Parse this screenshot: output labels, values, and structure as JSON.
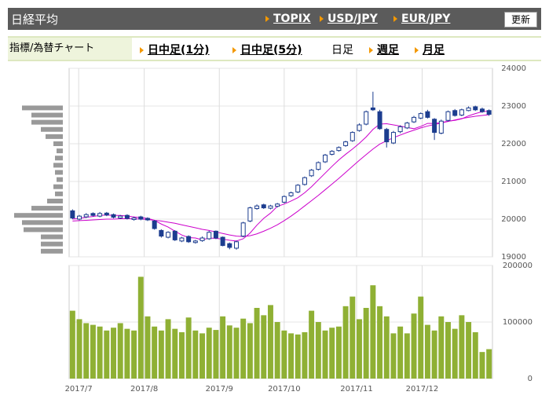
{
  "header": {
    "title": "日経平均",
    "links": [
      "TOPIX",
      "USD/JPY",
      "EUR/JPY"
    ],
    "button": "更新"
  },
  "nav": {
    "label": "指標/為替チャート",
    "tabs": [
      "日中足(1分)",
      "日中足(5分)",
      "日足",
      "週足",
      "月足"
    ]
  },
  "chart_data": {
    "type": "candlestick",
    "color": "#1c3d8f",
    "volume_color": "#8fb034",
    "ma_color": "#cc00cc",
    "xlim": [
      -0.5,
      61.5
    ],
    "xticks": [
      {
        "value": 0.9,
        "label": "2017/7"
      },
      {
        "value": 10.5,
        "label": "2017/8"
      },
      {
        "value": 21.5,
        "label": "2017/9"
      },
      {
        "value": 31,
        "label": "2017/10"
      },
      {
        "value": 41.6,
        "label": "2017/11"
      },
      {
        "value": 51.2,
        "label": "2017/12"
      }
    ],
    "ylim": [
      19000,
      24000
    ],
    "yticks": [
      19000,
      20000,
      21000,
      22000,
      23000,
      24000
    ],
    "y2lim": [
      0,
      200000
    ],
    "y2ticks": [
      0,
      100000,
      200000
    ],
    "open": [
      20220,
      20000,
      20060,
      20150,
      20080,
      20160,
      20120,
      20030,
      20100,
      19990,
      20060,
      20020,
      19950,
      19700,
      19520,
      19680,
      19420,
      19540,
      19380,
      19430,
      19480,
      19680,
      19520,
      19350,
      19230,
      19550,
      19950,
      20280,
      20380,
      20290,
      20340,
      20450,
      20620,
      20720,
      20920,
      21150,
      21320,
      21520,
      21720,
      21820,
      21950,
      22080,
      22350,
      22520,
      22950,
      22850,
      22380,
      22020,
      22320,
      22420,
      22580,
      22680,
      22850,
      22650,
      22280,
      22620,
      22880,
      22760,
      22880,
      22980,
      22920,
      22880
    ],
    "high": [
      20260,
      20110,
      20160,
      20180,
      20190,
      20190,
      20150,
      20110,
      20130,
      20060,
      20090,
      20050,
      19980,
      19730,
      19680,
      19710,
      19530,
      19570,
      19450,
      19540,
      19690,
      19700,
      19540,
      19380,
      19430,
      19930,
      20330,
      20390,
      20410,
      20380,
      20430,
      20630,
      20730,
      20930,
      21130,
      21330,
      21530,
      21730,
      21830,
      21930,
      22080,
      22330,
      22540,
      22880,
      23380,
      22900,
      22420,
      22340,
      22490,
      22580,
      22740,
      22830,
      22900,
      22680,
      22640,
      22880,
      22920,
      22930,
      22990,
      23010,
      22960,
      22910
    ],
    "low": [
      20000,
      19970,
      20030,
      20070,
      20050,
      20080,
      20020,
      20000,
      19990,
      19960,
      19970,
      19950,
      19720,
      19510,
      19490,
      19420,
      19390,
      19370,
      19350,
      19400,
      19450,
      19470,
      19280,
      19200,
      19190,
      19520,
      19920,
      20250,
      20270,
      20260,
      20310,
      20420,
      20590,
      20690,
      20890,
      21120,
      21290,
      21490,
      21690,
      21790,
      21920,
      22050,
      22320,
      22490,
      22870,
      22370,
      21900,
      21990,
      22280,
      22390,
      22550,
      22650,
      22670,
      22100,
      22250,
      22590,
      22720,
      22730,
      22860,
      22870,
      22820,
      22740
    ],
    "close": [
      20030,
      20080,
      20120,
      20100,
      20150,
      20110,
      20050,
      20080,
      20020,
      20030,
      20000,
      19980,
      19750,
      19550,
      19650,
      19450,
      19500,
      19400,
      19420,
      19500,
      19650,
      19500,
      19300,
      19250,
      19400,
      19900,
      20300,
      20350,
      20300,
      20350,
      20400,
      20600,
      20700,
      20900,
      21100,
      21300,
      21500,
      21700,
      21800,
      21900,
      22050,
      22300,
      22500,
      22850,
      22900,
      22400,
      22050,
      22300,
      22450,
      22550,
      22700,
      22800,
      22700,
      22300,
      22600,
      22850,
      22750,
      22900,
      22950,
      22900,
      22850,
      22780
    ],
    "volume": [
      120000,
      105000,
      98000,
      95000,
      92000,
      85000,
      90000,
      98000,
      88000,
      85000,
      180000,
      110000,
      92000,
      85000,
      105000,
      88000,
      82000,
      108000,
      85000,
      80000,
      90000,
      86000,
      110000,
      94000,
      90000,
      106000,
      98000,
      125000,
      112000,
      130000,
      100000,
      85000,
      80000,
      78000,
      82000,
      120000,
      100000,
      85000,
      90000,
      92000,
      128000,
      145000,
      105000,
      125000,
      165000,
      128000,
      110000,
      80000,
      92000,
      80000,
      115000,
      145000,
      95000,
      85000,
      110000,
      100000,
      88000,
      112000,
      100000,
      82000,
      47000,
      52000
    ],
    "ma": [
      [
        20000,
        20020,
        20050,
        20070,
        20100,
        20110,
        20100,
        20100,
        20080,
        20060,
        20040,
        20020,
        19970,
        19870,
        19790,
        19680,
        19580,
        19510,
        19500,
        19450,
        19500,
        19490,
        19470,
        19440,
        19420,
        19480,
        19630,
        19840,
        20020,
        20160,
        20340,
        20400,
        20480,
        20570,
        20700,
        20860,
        21040,
        21220,
        21400,
        21570,
        21720,
        21860,
        22010,
        22180,
        22380,
        22520,
        22530,
        22500,
        22470,
        22430,
        22400,
        22460,
        22540,
        22540,
        22560,
        22600,
        22620,
        22660,
        22740,
        22800,
        22850,
        22870
      ],
      [
        19950,
        19960,
        19970,
        19980,
        19990,
        20000,
        20000,
        20010,
        20010,
        20010,
        20000,
        19990,
        19970,
        19950,
        19920,
        19890,
        19850,
        19810,
        19770,
        19730,
        19700,
        19660,
        19620,
        19580,
        19550,
        19540,
        19560,
        19610,
        19680,
        19760,
        19850,
        19960,
        20080,
        20210,
        20350,
        20490,
        20630,
        20780,
        20930,
        21080,
        21240,
        21400,
        21560,
        21710,
        21860,
        21990,
        22080,
        22160,
        22230,
        22300,
        22360,
        22420,
        22470,
        22510,
        22550,
        22590,
        22630,
        22670,
        22700,
        22730,
        22750,
        22770
      ]
    ],
    "volume_profile": {
      "xlim": [
        0,
        65
      ],
      "prices": [
        22950,
        22760,
        22570,
        22380,
        22190,
        22000,
        21810,
        21620,
        21430,
        21240,
        21050,
        20860,
        20670,
        20480,
        20290,
        20100,
        19910,
        19720,
        19530,
        19340,
        19150
      ],
      "values": [
        52,
        40,
        40,
        28,
        22,
        12,
        8,
        10,
        12,
        10,
        8,
        12,
        10,
        20,
        40,
        62,
        52,
        50,
        28,
        28,
        28
      ]
    }
  }
}
